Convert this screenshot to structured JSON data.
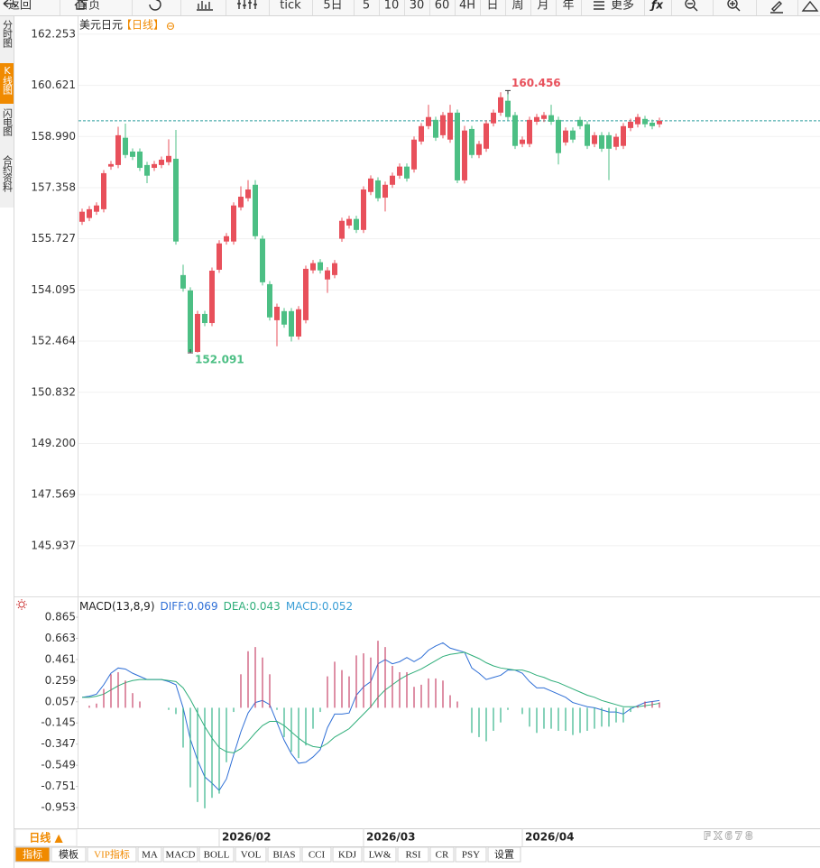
{
  "toolbar": {
    "items": [
      "返回",
      "首页",
      "tick",
      "5日",
      "5",
      "10",
      "30",
      "60",
      "4H",
      "日",
      "周",
      "月",
      "年",
      "更多"
    ]
  },
  "sidebar": {
    "tabs": [
      "分时图",
      "K线图",
      "闪电图",
      "合约资料"
    ],
    "active": 1
  },
  "chart_data": [
    {
      "type": "candlestick",
      "title": "美元日元",
      "subtitle": "【日线】",
      "up_color": "#e8505b",
      "down_color": "#4cbf84",
      "last_price_color": "#2a9d9d",
      "grid": true,
      "ylim": [
        144.35,
        162.71
      ],
      "yticks": [
        162.253,
        160.621,
        {
          "value": 158.99,
          "label": "158.990"
        },
        157.358,
        155.727,
        154.095,
        152.464,
        150.832,
        {
          "value": 149.2,
          "label": "149.200"
        },
        147.569,
        145.937
      ],
      "open": [
        156.27,
        156.39,
        156.59,
        156.67,
        158.03,
        158.08,
        158.95,
        158.51,
        158.51,
        158.08,
        157.99,
        158.08,
        158.17,
        158.28,
        154.57,
        154.08,
        152.12,
        153.33,
        153.04,
        154.74,
        155.64,
        155.64,
        156.73,
        157.02,
        157.45,
        155.73,
        154.28,
        153.13,
        153.42,
        153.42,
        152.61,
        153.13,
        154.72,
        154.98,
        154.43,
        154.57,
        155.73,
        156.15,
        156.36,
        156.01,
        157.22,
        157.59,
        157.04,
        157.45,
        157.74,
        158.03,
        157.94,
        158.83,
        159.32,
        159.52,
        159.03,
        158.89,
        159.75,
        157.59,
        159.23,
        158.4,
        158.6,
        159.41,
        159.75,
        160.13,
        159.67,
        158.75,
        158.75,
        159.46,
        159.55,
        159.67,
        159.52,
        158.8,
        159.18,
        159.52,
        159.38,
        158.75,
        159.03,
        159.03,
        158.66,
        158.69,
        159.26,
        159.38,
        159.55,
        159.43,
        159.38
      ],
      "high": [
        156.69,
        156.77,
        156.89,
        157.92,
        158.21,
        159.3,
        159.4,
        158.61,
        158.61,
        158.18,
        158.21,
        158.35,
        158.9,
        159.2,
        154.9,
        154.18,
        153.43,
        153.43,
        154.81,
        155.68,
        155.91,
        156.89,
        157.4,
        157.6,
        157.6,
        155.83,
        154.38,
        153.66,
        153.52,
        153.52,
        153.58,
        154.87,
        155.05,
        155.08,
        154.82,
        155.05,
        156.4,
        156.46,
        156.46,
        157.4,
        157.75,
        157.69,
        157.55,
        157.84,
        158.13,
        158.13,
        158.99,
        159.42,
        160.0,
        159.62,
        159.77,
        160.0,
        159.85,
        159.33,
        159.33,
        158.85,
        159.51,
        159.85,
        160.4,
        160.456,
        159.77,
        158.99,
        159.62,
        159.71,
        159.77,
        160.0,
        159.62,
        159.28,
        159.28,
        159.62,
        159.48,
        159.13,
        159.13,
        159.13,
        159.08,
        159.42,
        159.56,
        159.71,
        159.65,
        159.53,
        159.59
      ],
      "low": [
        156.17,
        156.29,
        156.49,
        156.57,
        157.93,
        157.98,
        158.3,
        158.24,
        157.89,
        157.5,
        157.89,
        157.98,
        158.07,
        155.54,
        154.04,
        152.091,
        152.1,
        152.94,
        152.94,
        154.64,
        155.54,
        155.54,
        156.63,
        156.92,
        155.71,
        154.24,
        153.12,
        152.3,
        152.89,
        152.45,
        152.51,
        153.03,
        154.62,
        154.62,
        154.0,
        154.47,
        155.63,
        156.05,
        155.91,
        155.91,
        157.12,
        156.92,
        156.6,
        157.35,
        157.64,
        157.55,
        157.84,
        158.73,
        159.22,
        158.85,
        158.93,
        158.79,
        157.5,
        157.49,
        158.3,
        158.3,
        158.5,
        159.31,
        159.65,
        159.51,
        158.59,
        158.65,
        158.65,
        159.36,
        159.45,
        159.36,
        158.1,
        158.7,
        158.79,
        159.22,
        158.59,
        158.65,
        158.5,
        157.6,
        158.56,
        158.59,
        159.16,
        159.28,
        159.28,
        159.22,
        159.28
      ],
      "close": [
        156.59,
        156.67,
        156.79,
        157.82,
        158.11,
        159.03,
        158.4,
        158.34,
        157.99,
        157.74,
        158.11,
        158.25,
        158.37,
        155.64,
        154.14,
        152.12,
        153.33,
        153.04,
        154.71,
        155.58,
        155.81,
        156.79,
        157.07,
        157.3,
        155.81,
        154.34,
        153.22,
        153.56,
        152.99,
        152.61,
        153.48,
        154.77,
        154.95,
        154.72,
        154.72,
        154.95,
        156.3,
        156.36,
        156.01,
        157.3,
        157.65,
        157.02,
        157.45,
        157.74,
        158.03,
        157.65,
        158.89,
        159.32,
        159.61,
        158.95,
        159.67,
        159.75,
        157.59,
        159.18,
        158.4,
        158.75,
        159.41,
        159.75,
        160.24,
        159.61,
        158.69,
        158.89,
        159.52,
        159.61,
        159.67,
        159.46,
        158.46,
        159.18,
        158.89,
        159.32,
        158.69,
        159.03,
        158.6,
        158.6,
        158.98,
        159.32,
        159.46,
        159.61,
        159.38,
        159.32,
        159.49
      ]
    },
    {
      "type": "macd",
      "title": "MACD(13,8,9)",
      "ylim": [
        -1.151,
        1.029
      ],
      "yticks": [
        0.865,
        0.663,
        0.461,
        0.259,
        0.057,
        -0.145,
        -0.347,
        -0.549,
        -0.751,
        -0.953
      ],
      "categories": [
        null,
        null,
        null,
        null,
        null,
        null,
        null,
        null,
        null,
        null,
        null,
        null,
        null,
        null,
        null,
        null,
        null,
        null,
        null,
        "2026/02",
        null,
        null,
        null,
        null,
        null,
        null,
        null,
        null,
        null,
        null,
        null,
        null,
        null,
        null,
        null,
        null,
        null,
        null,
        null,
        "2026/03",
        null,
        null,
        null,
        null,
        null,
        null,
        null,
        null,
        null,
        null,
        null,
        null,
        null,
        null,
        null,
        null,
        null,
        null,
        null,
        null,
        null,
        "2026/04",
        null,
        null,
        null,
        null,
        null,
        null,
        null,
        null,
        null,
        null,
        null,
        null,
        null,
        null,
        null,
        null,
        null,
        null,
        null
      ],
      "series": [
        {
          "name": "DIFF:",
          "color": "#2f6fd6",
          "type": "line",
          "values": [
            0.1,
            0.11,
            0.13,
            0.22,
            0.33,
            0.38,
            0.37,
            0.33,
            0.3,
            0.27,
            0.27,
            0.27,
            0.25,
            0.22,
            0.0,
            -0.3,
            -0.5,
            -0.66,
            -0.72,
            -0.79,
            -0.68,
            -0.45,
            -0.23,
            -0.05,
            0.05,
            0.07,
            0.03,
            -0.14,
            -0.31,
            -0.44,
            -0.53,
            -0.52,
            -0.47,
            -0.4,
            -0.19,
            -0.06,
            -0.06,
            -0.05,
            0.12,
            0.2,
            0.25,
            0.42,
            0.46,
            0.42,
            0.44,
            0.48,
            0.44,
            0.48,
            0.55,
            0.59,
            0.62,
            0.57,
            0.55,
            0.53,
            0.38,
            0.33,
            0.27,
            0.29,
            0.31,
            0.36,
            0.36,
            0.33,
            0.25,
            0.19,
            0.19,
            0.16,
            0.13,
            0.1,
            0.05,
            0.03,
            0.01,
            0.0,
            -0.02,
            -0.04,
            -0.04,
            -0.06,
            -0.01,
            0.02,
            0.05,
            0.06,
            0.069
          ]
        },
        {
          "name": "DEA:",
          "color": "#2fae7a",
          "type": "line",
          "values": [
            0.1,
            0.1,
            0.11,
            0.13,
            0.17,
            0.21,
            0.24,
            0.26,
            0.27,
            0.27,
            0.27,
            0.27,
            0.26,
            0.25,
            0.19,
            0.08,
            -0.05,
            -0.18,
            -0.29,
            -0.38,
            -0.42,
            -0.43,
            -0.39,
            -0.32,
            -0.24,
            -0.17,
            -0.13,
            -0.13,
            -0.17,
            -0.23,
            -0.29,
            -0.34,
            -0.37,
            -0.38,
            -0.34,
            -0.28,
            -0.24,
            -0.2,
            -0.13,
            -0.06,
            0.01,
            0.1,
            0.17,
            0.22,
            0.27,
            0.31,
            0.34,
            0.37,
            0.41,
            0.45,
            0.49,
            0.51,
            0.52,
            0.53,
            0.5,
            0.47,
            0.43,
            0.4,
            0.38,
            0.37,
            0.36,
            0.36,
            0.34,
            0.31,
            0.29,
            0.26,
            0.24,
            0.21,
            0.18,
            0.15,
            0.12,
            0.1,
            0.07,
            0.05,
            0.03,
            0.01,
            0.01,
            0.01,
            0.02,
            0.03,
            0.043
          ]
        },
        {
          "name": "MACD:",
          "color": "#3a9ed6",
          "type": "bar",
          "up_color": "#c9466a",
          "down_color": "#35b48a",
          "values": [
            0.0,
            0.02,
            0.04,
            0.18,
            0.32,
            0.34,
            0.26,
            0.14,
            0.06,
            0.0,
            0.0,
            0.0,
            -0.02,
            -0.06,
            -0.38,
            -0.76,
            -0.9,
            -0.96,
            -0.86,
            -0.82,
            -0.52,
            -0.04,
            0.32,
            0.54,
            0.58,
            0.48,
            0.32,
            -0.02,
            -0.28,
            -0.42,
            -0.48,
            -0.36,
            -0.2,
            -0.04,
            0.3,
            0.44,
            0.36,
            0.3,
            0.5,
            0.52,
            0.48,
            0.64,
            0.58,
            0.4,
            0.34,
            0.34,
            0.2,
            0.22,
            0.28,
            0.28,
            0.26,
            0.12,
            0.06,
            0.0,
            -0.24,
            -0.28,
            -0.32,
            -0.22,
            -0.14,
            -0.02,
            0.0,
            -0.06,
            -0.18,
            -0.24,
            -0.2,
            -0.2,
            -0.22,
            -0.22,
            -0.26,
            -0.24,
            -0.22,
            -0.2,
            -0.18,
            -0.18,
            -0.14,
            -0.14,
            -0.04,
            0.02,
            0.06,
            0.06,
            0.052
          ]
        }
      ]
    }
  ],
  "footer": {
    "period_button": "日线 ▲",
    "tabs": [
      "指标",
      "模板",
      "VIP指标",
      "MA",
      "MACD",
      "BOLL",
      "VOL",
      "BIAS",
      "CCI",
      "KDJ",
      "LW&",
      "RSI",
      "CR",
      "PSY",
      "设置"
    ],
    "active": 0,
    "highlight": 2
  },
  "watermark": "FX678"
}
